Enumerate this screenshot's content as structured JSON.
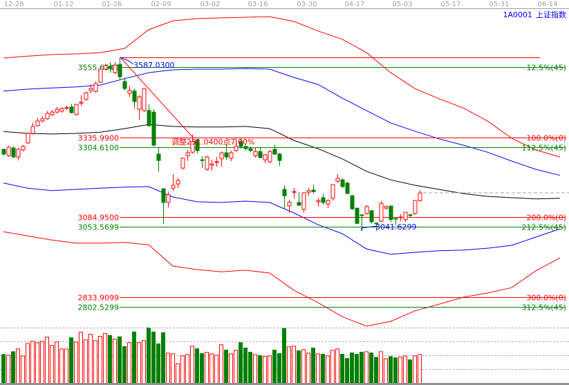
{
  "header": {
    "code": "1A0001",
    "name": "上证指数",
    "title_color": "#0000ff"
  },
  "chart_data": [
    {
      "type": "candlestick",
      "x_tick_labels": [
        "12-28",
        "01-12",
        "01-26",
        "02-09",
        "03-02",
        "03-16",
        "03-30",
        "04-17",
        "05-03",
        "05-17",
        "05-31",
        "06-14"
      ],
      "up_color": "#ff0000",
      "down_color": "#008000",
      "candles_ohlc": [
        [
          3298,
          3300,
          3278,
          3283
        ],
        [
          3278,
          3309,
          3274,
          3305
        ],
        [
          3302,
          3307,
          3270,
          3274
        ],
        [
          3274,
          3302,
          3263,
          3298
        ],
        [
          3296,
          3311,
          3291,
          3307
        ],
        [
          3318,
          3352,
          3315,
          3348
        ],
        [
          3348,
          3381,
          3344,
          3370
        ],
        [
          3372,
          3396,
          3370,
          3387
        ],
        [
          3387,
          3402,
          3383,
          3394
        ],
        [
          3394,
          3418,
          3391,
          3411
        ],
        [
          3407,
          3422,
          3402,
          3415
        ],
        [
          3415,
          3431,
          3411,
          3424
        ],
        [
          3418,
          3431,
          3413,
          3426
        ],
        [
          3428,
          3435,
          3422,
          3429
        ],
        [
          3431,
          3441,
          3411,
          3413
        ],
        [
          3407,
          3441,
          3404,
          3439
        ],
        [
          3443,
          3468,
          3435,
          3446
        ],
        [
          3455,
          3478,
          3450,
          3476
        ],
        [
          3483,
          3502,
          3474,
          3489
        ],
        [
          3480,
          3511,
          3476,
          3504
        ],
        [
          3509,
          3552,
          3507,
          3550
        ],
        [
          3550,
          3567,
          3548,
          3561
        ],
        [
          3559,
          3572,
          3539,
          3552
        ],
        [
          3539,
          3572,
          3535,
          3563
        ],
        [
          3565,
          3587,
          3515,
          3526
        ],
        [
          3511,
          3524,
          3483,
          3489
        ],
        [
          3474,
          3498,
          3463,
          3483
        ],
        [
          3481,
          3489,
          3426,
          3448
        ],
        [
          3424,
          3468,
          3391,
          3463
        ],
        [
          3420,
          3489,
          3415,
          3489
        ],
        [
          3420,
          3439,
          3370,
          3372
        ],
        [
          3415,
          3424,
          3307,
          3311
        ],
        [
          3283,
          3305,
          3228,
          3263
        ],
        [
          3174,
          3176,
          3063,
          3131
        ],
        [
          3131,
          3165,
          3115,
          3155
        ],
        [
          3176,
          3220,
          3168,
          3185
        ],
        [
          3189,
          3207,
          3176,
          3200
        ],
        [
          3239,
          3272,
          3235,
          3270
        ],
        [
          3278,
          3296,
          3261,
          3287
        ],
        [
          3289,
          3344,
          3285,
          3322
        ],
        [
          3328,
          3331,
          3285,
          3294
        ],
        [
          3265,
          3276,
          3239,
          3263
        ],
        [
          3235,
          3278,
          3231,
          3274
        ],
        [
          3248,
          3265,
          3231,
          3252
        ],
        [
          3257,
          3274,
          3244,
          3259
        ],
        [
          3268,
          3291,
          3244,
          3287
        ],
        [
          3287,
          3315,
          3265,
          3274
        ],
        [
          3270,
          3294,
          3261,
          3287
        ],
        [
          3294,
          3333,
          3289,
          3307
        ],
        [
          3322,
          3333,
          3300,
          3307
        ],
        [
          3307,
          3313,
          3294,
          3300
        ],
        [
          3300,
          3305,
          3289,
          3294
        ],
        [
          3278,
          3302,
          3272,
          3291
        ],
        [
          3291,
          3302,
          3270,
          3272
        ],
        [
          3265,
          3283,
          3254,
          3281
        ],
        [
          3259,
          3296,
          3254,
          3291
        ],
        [
          3298,
          3313,
          3280,
          3283
        ],
        [
          3283,
          3287,
          3246,
          3263
        ],
        [
          3172,
          3185,
          3111,
          3152
        ],
        [
          3120,
          3139,
          3098,
          3131
        ],
        [
          3163,
          3176,
          3144,
          3165
        ],
        [
          3131,
          3163,
          3120,
          3122
        ],
        [
          3109,
          3163,
          3100,
          3161
        ],
        [
          3163,
          3176,
          3152,
          3168
        ],
        [
          3170,
          3187,
          3159,
          3165
        ],
        [
          3133,
          3146,
          3118,
          3137
        ],
        [
          3146,
          3159,
          3124,
          3131
        ],
        [
          3126,
          3141,
          3113,
          3137
        ],
        [
          3144,
          3187,
          3137,
          3187
        ],
        [
          3198,
          3220,
          3192,
          3207
        ],
        [
          3202,
          3207,
          3176,
          3181
        ],
        [
          3192,
          3196,
          3157,
          3159
        ],
        [
          3152,
          3155,
          3107,
          3111
        ],
        [
          3113,
          3115,
          3063,
          3065
        ],
        [
          3092,
          3094,
          3042,
          3090
        ],
        [
          3096,
          3122,
          3092,
          3118
        ],
        [
          3105,
          3107,
          3065,
          3070
        ],
        [
          3066,
          3068,
          3042,
          3065
        ],
        [
          3072,
          3135,
          3070,
          3128
        ],
        [
          3113,
          3122,
          3109,
          3118
        ],
        [
          3120,
          3120,
          3070,
          3077
        ],
        [
          3081,
          3081,
          3060,
          3079
        ],
        [
          3083,
          3094,
          3072,
          3085
        ],
        [
          3077,
          3100,
          3070,
          3100
        ],
        [
          3092,
          3096,
          3085,
          3090
        ],
        [
          3096,
          3137,
          3092,
          3137
        ],
        [
          3137,
          3170,
          3133,
          3161
        ]
      ],
      "band_sample_step_bars": 5,
      "bands": [
        {
          "color": "#ff0000",
          "values": [
            3585,
            3591,
            3596,
            3598,
            3602,
            3615,
            3674,
            3702,
            3709,
            3711,
            3713,
            3715,
            3700,
            3670,
            3644,
            3602,
            3539,
            3489,
            3457,
            3428,
            3387,
            3333,
            3296,
            3274
          ]
        },
        {
          "color": "#0000ff",
          "values": [
            3481,
            3487,
            3491,
            3494,
            3500,
            3520,
            3539,
            3548,
            3550,
            3550,
            3552,
            3550,
            3524,
            3502,
            3459,
            3420,
            3381,
            3355,
            3331,
            3311,
            3289,
            3261,
            3235,
            3216
          ]
        },
        {
          "color": "#000000",
          "values": [
            3354,
            3348,
            3346,
            3348,
            3352,
            3363,
            3376,
            3370,
            3368,
            3368,
            3370,
            3363,
            3326,
            3300,
            3268,
            3229,
            3202,
            3185,
            3172,
            3159,
            3150,
            3146,
            3142,
            3144
          ]
        },
        {
          "color": "#0000ff",
          "values": [
            3192,
            3176,
            3168,
            3172,
            3176,
            3179,
            3181,
            3148,
            3133,
            3131,
            3135,
            3131,
            3098,
            3061,
            3033,
            2985,
            2968,
            2974,
            2979,
            2981,
            2987,
            2996,
            3022,
            3048
          ]
        },
        {
          "color": "#ff0000",
          "values": [
            3039,
            3026,
            3013,
            3003,
            3003,
            3005,
            2998,
            2931,
            2920,
            2913,
            2918,
            2909,
            2855,
            2816,
            2772,
            2742,
            2757,
            2790,
            2811,
            2833,
            2846,
            2863,
            2916,
            2957
          ]
        }
      ],
      "high_label": "3587.0300",
      "low_label": "3041.6299",
      "adjust_label": "调整251.0400点7.00%",
      "fib_levels": [
        {
          "price": 3587.03,
          "color": "#ff0000",
          "left_label": "",
          "right_label": ""
        },
        {
          "price": 3555.65,
          "color": "#008000",
          "left_label": "3555.6500",
          "right_label": "12.5%(45)"
        },
        {
          "price": 3335.99,
          "color": "#ff0000",
          "left_label": "3335.9900",
          "right_label": "100.0%(0)"
        },
        {
          "price": 3304.61,
          "color": "#008000",
          "left_label": "3304.6100",
          "right_label": "112.5%(45)"
        },
        {
          "price": 3084.95,
          "color": "#ff0000",
          "left_label": "3084.9500",
          "right_label": "200.0%(0)"
        },
        {
          "price": 3053.5699,
          "color": "#008000",
          "left_label": "3053.5699",
          "right_label": "212.5%(45)"
        },
        {
          "price": 2833.9099,
          "color": "#ff0000",
          "left_label": "2833.9099",
          "right_label": "300.0%(0)"
        },
        {
          "price": 2802.5299,
          "color": "#008000",
          "left_label": "2802.5299",
          "right_label": "312.5%(45)"
        }
      ]
    },
    {
      "type": "bar",
      "title": "",
      "volume_relative": [
        125,
        122,
        137,
        149,
        119,
        172,
        182,
        176,
        182,
        200,
        164,
        179,
        149,
        149,
        197,
        179,
        221,
        188,
        212,
        185,
        203,
        215,
        207,
        191,
        201,
        159,
        176,
        222,
        176,
        185,
        239,
        222,
        171,
        219,
        131,
        128,
        86,
        119,
        125,
        161,
        150,
        129,
        134,
        128,
        122,
        167,
        144,
        128,
        143,
        176,
        153,
        135,
        125,
        120,
        116,
        119,
        144,
        129,
        237,
        158,
        161,
        141,
        146,
        131,
        153,
        128,
        126,
        119,
        143,
        149,
        126,
        108,
        132,
        126,
        135,
        137,
        132,
        113,
        137,
        107,
        116,
        111,
        114,
        119,
        102,
        119,
        125
      ],
      "ylim": [
        0,
        239
      ],
      "grid": true
    }
  ]
}
